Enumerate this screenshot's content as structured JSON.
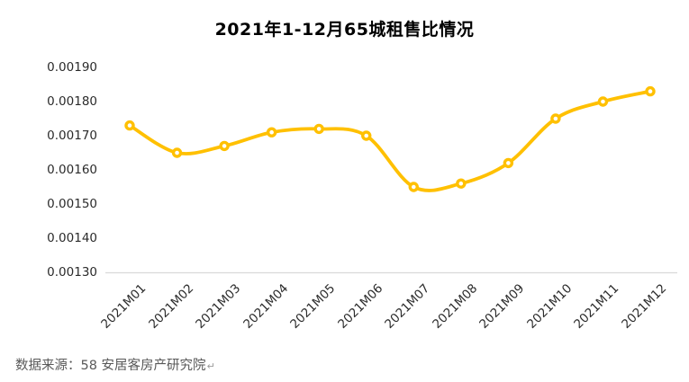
{
  "title": "2021年1-12月65城租售比情况",
  "source_note": "数据来源：58 安居客房产研究院",
  "return_mark": "↵",
  "colors": {
    "line": "#FFC000",
    "marker_fill": "#ffffff",
    "axis_line": "#d9d9d9",
    "tick_text": "#2b2b2b",
    "title_text": "#000000",
    "source_text": "#595959"
  },
  "chart_data": {
    "type": "line",
    "title": "2021年1-12月65城租售比情况",
    "categories": [
      "2021M01",
      "2021M02",
      "2021M03",
      "2021M04",
      "2021M05",
      "2021M06",
      "2021M07",
      "2021M08",
      "2021M09",
      "2021M10",
      "2021M11",
      "2021M12"
    ],
    "series": [
      {
        "name": "65城租售比",
        "values": [
          0.00173,
          0.00165,
          0.00167,
          0.00171,
          0.00172,
          0.0017,
          0.00155,
          0.00156,
          0.00162,
          0.00175,
          0.0018,
          0.00183
        ]
      }
    ],
    "xlabel": "",
    "ylabel": "",
    "ylim": [
      0.0013,
      0.0019
    ],
    "ytick_step": 0.0001,
    "ytick_labels": [
      "0.00190",
      "0.00180",
      "0.00170",
      "0.00160",
      "0.00150",
      "0.00140",
      "0.00130"
    ],
    "grid": false,
    "smooth": true,
    "marker": "open-circle",
    "legend": "none"
  }
}
